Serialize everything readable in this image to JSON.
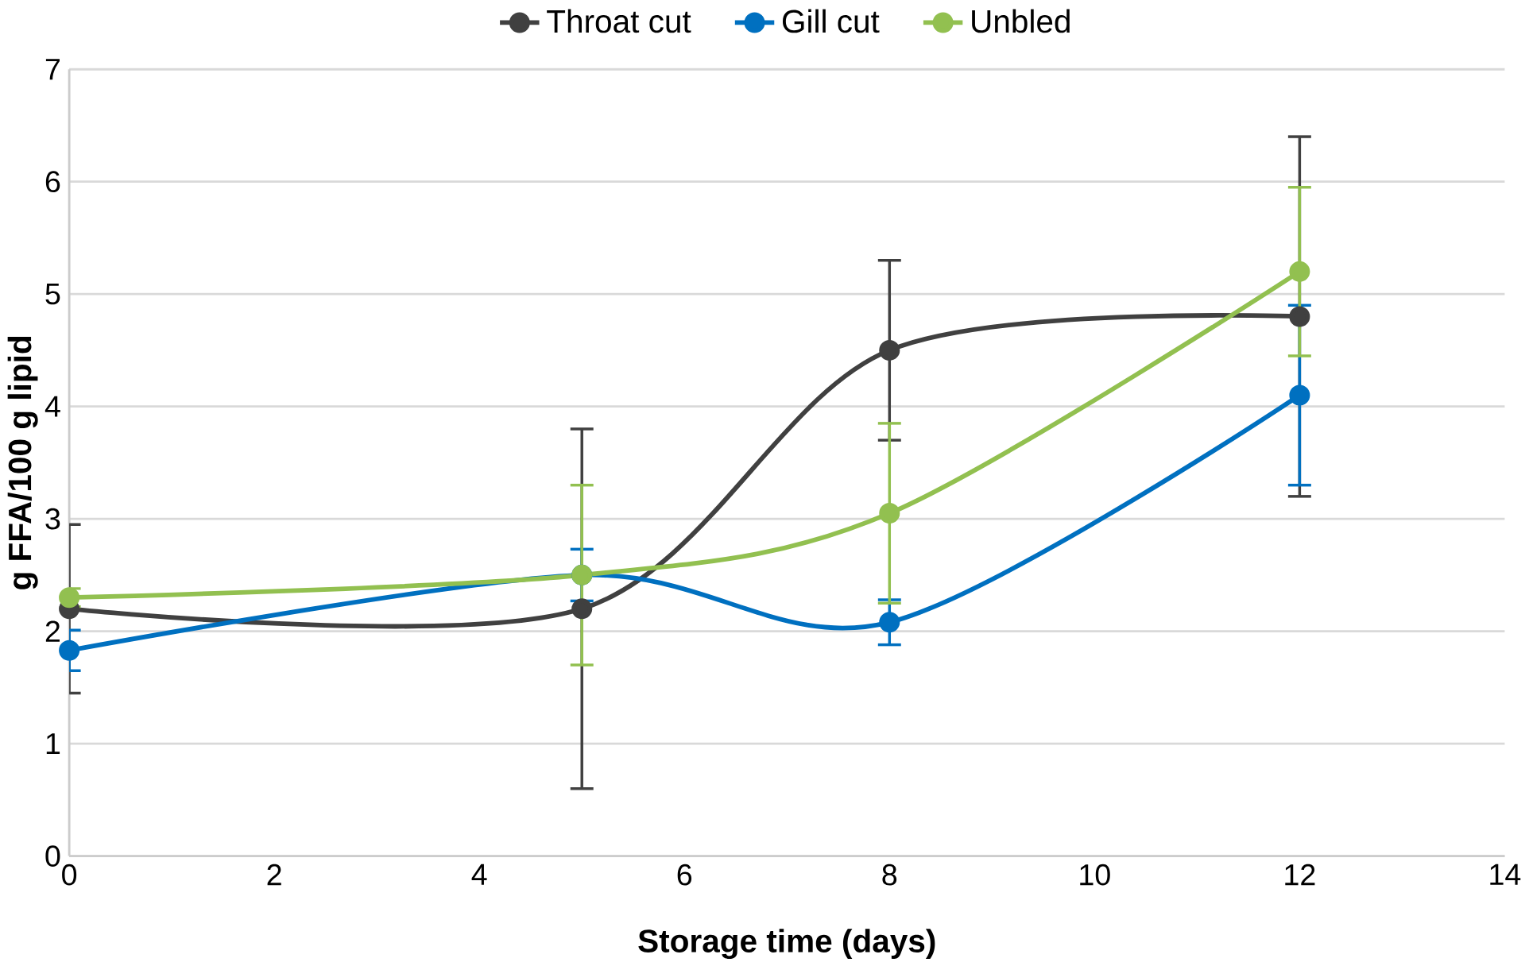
{
  "chart_data": {
    "type": "line",
    "xlabel": "Storage time (days)",
    "ylabel": "g FFA/100 g lipid",
    "x": [
      0,
      5,
      8,
      12
    ],
    "series": [
      {
        "name": "Throat cut",
        "color": "#404040",
        "values": [
          2.2,
          2.2,
          4.5,
          4.8
        ],
        "errors": [
          0.75,
          1.6,
          0.8,
          1.6
        ]
      },
      {
        "name": "Gill cut",
        "color": "#0070c0",
        "values": [
          1.83,
          2.5,
          2.08,
          4.1
        ],
        "errors": [
          0.18,
          0.23,
          0.2,
          0.8
        ]
      },
      {
        "name": "Unbled",
        "color": "#92c050",
        "values": [
          2.3,
          2.5,
          3.05,
          5.2
        ],
        "errors": [
          0.08,
          0.8,
          0.8,
          0.75
        ]
      }
    ],
    "xlim": [
      0,
      14
    ],
    "xticks": [
      0,
      2,
      4,
      6,
      8,
      10,
      12,
      14
    ],
    "ylim": [
      0,
      7
    ],
    "yticks": [
      0,
      1,
      2,
      3,
      4,
      5,
      6,
      7
    ],
    "grid": "y",
    "legend": "top",
    "marker": "circle",
    "line_style": "solid"
  }
}
